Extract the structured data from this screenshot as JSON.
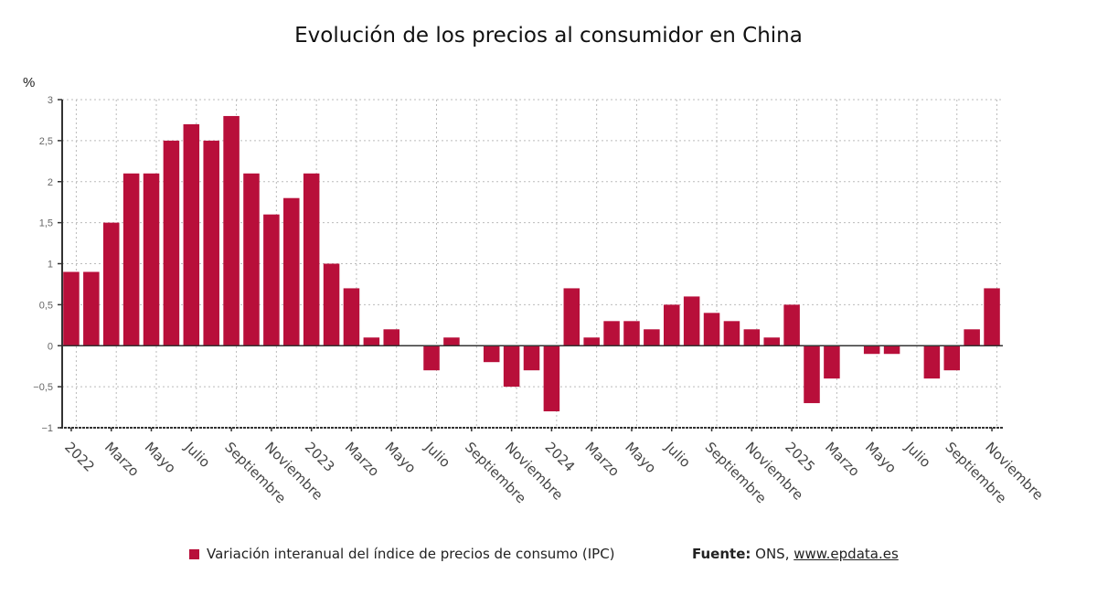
{
  "title": "Evolución de los precios al consumidor en China",
  "colors": {
    "bar": "#b80f3a",
    "axis": "#333333",
    "grid": "#bbbbbb"
  },
  "legend": {
    "label": "Variación interanual del índice de precios de consumo (IPC)"
  },
  "source": {
    "label": "Fuente:",
    "text": " ONS, ",
    "link": "www.epdata.es"
  },
  "chart_data": {
    "type": "bar",
    "title": "Evolución de los precios al consumidor en China",
    "ylabel": "%",
    "xlabel": "",
    "ylim": [
      -1,
      3
    ],
    "yticks": [
      3,
      2.5,
      2,
      1.5,
      1,
      0.5,
      0,
      -0.5,
      -1
    ],
    "ytick_labels": [
      "3",
      "2,5",
      "2",
      "1,5",
      "1",
      "0,5",
      "0",
      "−0,5",
      "−1"
    ],
    "grid": true,
    "legend_position": "bottom",
    "categories": [
      "2022-01",
      "2022-02",
      "2022-03",
      "2022-04",
      "2022-05",
      "2022-06",
      "2022-07",
      "2022-08",
      "2022-09",
      "2022-10",
      "2022-11",
      "2022-12",
      "2023-01",
      "2023-02",
      "2023-03",
      "2023-04",
      "2023-05",
      "2023-06",
      "2023-07",
      "2023-08",
      "2023-09",
      "2023-10",
      "2023-11",
      "2023-12",
      "2024-01",
      "2024-02",
      "2024-03",
      "2024-04",
      "2024-05",
      "2024-06",
      "2024-07",
      "2024-08",
      "2024-09",
      "2024-10",
      "2024-11",
      "2024-12",
      "2025-01",
      "2025-02",
      "2025-03",
      "2025-04",
      "2025-05",
      "2025-06",
      "2025-07",
      "2025-08",
      "2025-09",
      "2025-10",
      "2025-11"
    ],
    "xtick_labels": [
      "2022",
      "Marzo",
      "Mayo",
      "Julio",
      "Septiembre",
      "Noviembre",
      "2023",
      "Marzo",
      "Mayo",
      "Julio",
      "Septiembre",
      "Noviembre",
      "2024",
      "Marzo",
      "Mayo",
      "Julio",
      "Septiembre",
      "Noviembre",
      "2025",
      "Marzo",
      "Mayo",
      "Julio",
      "Septiembre",
      "Noviembre"
    ],
    "series": [
      {
        "name": "Variación interanual del índice de precios de consumo (IPC)",
        "values": [
          0.9,
          0.9,
          1.5,
          2.1,
          2.1,
          2.5,
          2.7,
          2.5,
          2.8,
          2.1,
          1.6,
          1.8,
          2.1,
          1.0,
          0.7,
          0.1,
          0.2,
          0.0,
          -0.3,
          0.1,
          0.0,
          -0.2,
          -0.5,
          -0.3,
          -0.8,
          0.7,
          0.1,
          0.3,
          0.3,
          0.2,
          0.5,
          0.6,
          0.4,
          0.3,
          0.2,
          0.1,
          0.5,
          -0.7,
          -0.4,
          0.0,
          -0.1,
          -0.1,
          0.0,
          -0.4,
          -0.3,
          0.2,
          0.7
        ]
      }
    ]
  }
}
